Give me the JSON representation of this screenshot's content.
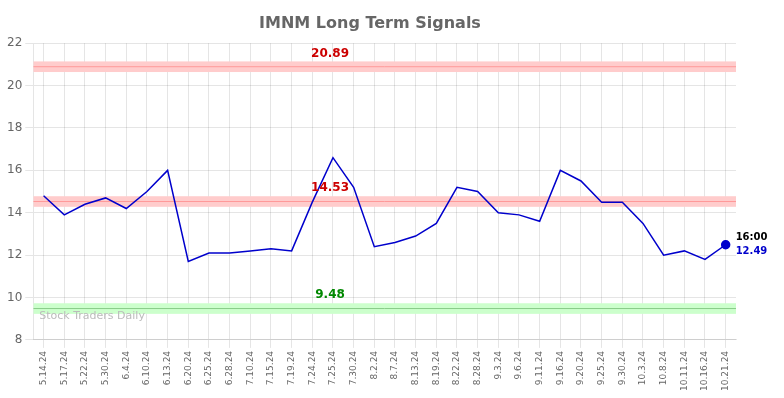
{
  "chart_data": {
    "type": "line",
    "title": "IMNM Long Term Signals",
    "categories": [
      "5.14.24",
      "5.17.24",
      "5.22.24",
      "5.30.24",
      "6.4.24",
      "6.10.24",
      "6.13.24",
      "6.20.24",
      "6.25.24",
      "6.28.24",
      "7.10.24",
      "7.15.24",
      "7.19.24",
      "7.24.24",
      "7.25.24",
      "7.30.24",
      "8.2.24",
      "8.7.24",
      "8.13.24",
      "8.19.24",
      "8.22.24",
      "8.28.24",
      "9.3.24",
      "9.6.24",
      "9.11.24",
      "9.16.24",
      "9.20.24",
      "9.25.24",
      "9.30.24",
      "10.3.24",
      "10.8.24",
      "10.11.24",
      "10.16.24",
      "10.21.24"
    ],
    "values": [
      14.8,
      13.9,
      14.4,
      14.7,
      14.2,
      15.0,
      16.0,
      11.7,
      12.1,
      12.1,
      12.2,
      12.3,
      12.2,
      14.5,
      16.6,
      15.2,
      12.4,
      12.6,
      12.9,
      13.5,
      15.2,
      15.0,
      14.0,
      13.9,
      13.6,
      16.0,
      15.5,
      14.5,
      14.5,
      13.5,
      12.0,
      12.2,
      11.8,
      12.49
    ],
    "color": "#0000cc",
    "ylim": [
      8,
      22
    ],
    "yticks": [
      8,
      10,
      12,
      14,
      16,
      18,
      20,
      22
    ],
    "grid": true,
    "hlines": [
      {
        "value": 20.89,
        "band": [
          20.64,
          21.14
        ],
        "color": "#ff9999",
        "band_color": "#ffcccc",
        "label_color": "#cc0000"
      },
      {
        "value": 14.53,
        "band": [
          14.28,
          14.78
        ],
        "color": "#ff9999",
        "band_color": "#ffcccc",
        "label_color": "#cc0000"
      },
      {
        "value": 9.48,
        "band": [
          9.23,
          9.73
        ],
        "color": "#88cc88",
        "band_color": "#ccffcc",
        "label_color": "#008800"
      }
    ],
    "end_label": {
      "time": "16:00",
      "value": 12.49,
      "color": "#0000cc"
    },
    "watermark": {
      "text": "Stock Traders Daily",
      "color": "#bbbbbb"
    }
  }
}
